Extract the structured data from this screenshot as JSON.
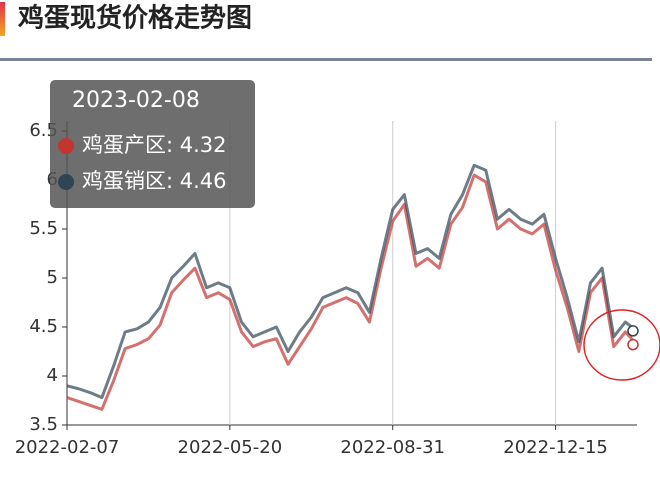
{
  "chart_data": {
    "type": "line",
    "title": "鸡蛋现货价格走势图",
    "categories": [
      "2022-02-07",
      null,
      null,
      null,
      null,
      null,
      null,
      null,
      null,
      null,
      null,
      null,
      null,
      null,
      "2022-05-20",
      null,
      null,
      null,
      null,
      null,
      null,
      null,
      null,
      null,
      null,
      null,
      null,
      null,
      "2022-08-31",
      null,
      null,
      null,
      null,
      null,
      null,
      null,
      null,
      null,
      null,
      null,
      null,
      null,
      "2022-12-15",
      null,
      null,
      null,
      null,
      null,
      null,
      "2023-02-08"
    ],
    "series": [
      {
        "name": "鸡蛋产区",
        "color": "#c23531",
        "values": [
          3.78,
          3.74,
          3.7,
          3.66,
          3.95,
          4.28,
          4.32,
          4.38,
          4.52,
          4.85,
          4.98,
          5.1,
          4.8,
          4.85,
          4.78,
          4.45,
          4.3,
          4.35,
          4.38,
          4.12,
          4.3,
          4.48,
          4.7,
          4.75,
          4.8,
          4.74,
          4.55,
          5.1,
          5.58,
          5.75,
          5.12,
          5.2,
          5.1,
          5.55,
          5.72,
          6.05,
          5.98,
          5.5,
          5.6,
          5.5,
          5.45,
          5.55,
          5.08,
          4.7,
          4.25,
          4.85,
          5.0,
          4.3,
          4.45,
          4.32
        ]
      },
      {
        "name": "鸡蛋销区",
        "color": "#2f4554",
        "values": [
          3.9,
          3.87,
          3.83,
          3.78,
          4.1,
          4.45,
          4.48,
          4.55,
          4.7,
          5.0,
          5.12,
          5.25,
          4.9,
          4.95,
          4.9,
          4.55,
          4.4,
          4.45,
          4.5,
          4.25,
          4.45,
          4.6,
          4.8,
          4.85,
          4.9,
          4.85,
          4.65,
          5.2,
          5.7,
          5.85,
          5.25,
          5.3,
          5.2,
          5.65,
          5.85,
          6.15,
          6.1,
          5.6,
          5.7,
          5.6,
          5.55,
          5.65,
          5.2,
          4.8,
          4.35,
          4.95,
          5.1,
          4.4,
          4.55,
          4.46
        ]
      }
    ],
    "ylim": [
      3.5,
      6.5
    ],
    "yticks": [
      3.5,
      4,
      4.5,
      5,
      5.5,
      6,
      6.5
    ],
    "grid": "x",
    "tooltip_separator": ": "
  }
}
